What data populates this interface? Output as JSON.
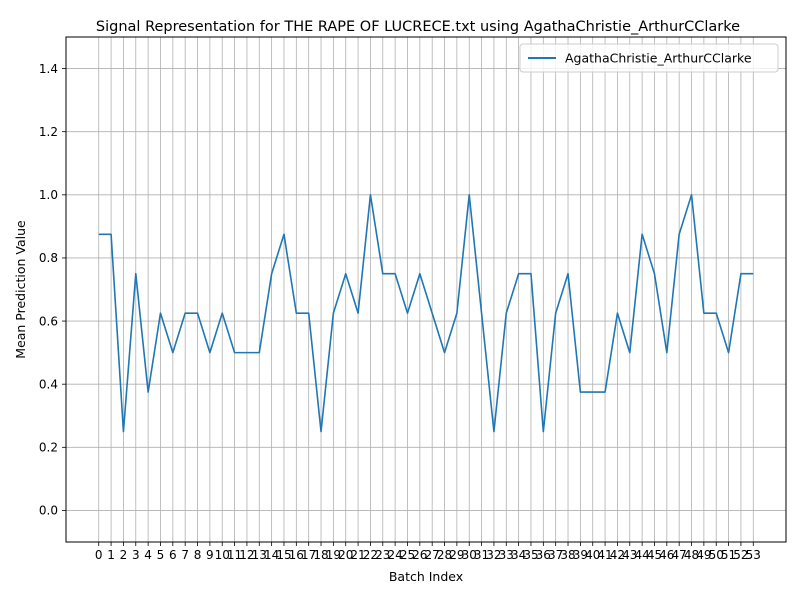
{
  "chart_data": {
    "type": "line",
    "title": "Signal Representation for THE RAPE OF LUCRECE.txt using AgathaChristie_ArthurCClarke",
    "xlabel": "Batch Index",
    "ylabel": "Mean Prediction Value",
    "xlim": [
      -2.65,
      55.65
    ],
    "ylim": [
      -0.1,
      1.5
    ],
    "yticks": [
      0.0,
      0.2,
      0.4,
      0.6,
      0.8,
      1.0,
      1.2,
      1.4
    ],
    "ytick_labels": [
      "0.0",
      "0.2",
      "0.4",
      "0.6",
      "0.8",
      "1.0",
      "1.2",
      "1.4"
    ],
    "xticks": [
      0,
      1,
      2,
      3,
      4,
      5,
      6,
      7,
      8,
      9,
      10,
      11,
      12,
      13,
      14,
      15,
      16,
      17,
      18,
      19,
      20,
      21,
      22,
      23,
      24,
      25,
      26,
      27,
      28,
      29,
      30,
      31,
      32,
      33,
      34,
      35,
      36,
      37,
      38,
      39,
      40,
      41,
      42,
      43,
      44,
      45,
      46,
      47,
      48,
      49,
      50,
      51,
      52,
      53
    ],
    "xtick_labels": [
      "0",
      "1",
      "2",
      "3",
      "4",
      "5",
      "6",
      "7",
      "8",
      "9",
      "10",
      "11",
      "12",
      "13",
      "14",
      "15",
      "16",
      "17",
      "18",
      "19",
      "20",
      "21",
      "22",
      "23",
      "24",
      "25",
      "26",
      "27",
      "28",
      "29",
      "30",
      "31",
      "32",
      "33",
      "34",
      "35",
      "36",
      "37",
      "38",
      "39",
      "40",
      "41",
      "42",
      "43",
      "44",
      "45",
      "46",
      "47",
      "48",
      "49",
      "50",
      "51",
      "52",
      "53"
    ],
    "grid": true,
    "legend_position": "top-right",
    "series": [
      {
        "name": "AgathaChristie_ArthurCClarke",
        "color": "#1f77b4",
        "x": [
          0,
          1,
          2,
          3,
          4,
          5,
          6,
          7,
          8,
          9,
          10,
          11,
          12,
          13,
          14,
          15,
          16,
          17,
          18,
          19,
          20,
          21,
          22,
          23,
          24,
          25,
          26,
          27,
          28,
          29,
          30,
          31,
          32,
          33,
          34,
          35,
          36,
          37,
          38,
          39,
          40,
          41,
          42,
          43,
          44,
          45,
          46,
          47,
          48,
          49,
          50,
          51,
          52,
          53
        ],
        "values": [
          0.875,
          0.875,
          0.25,
          0.75,
          0.375,
          0.625,
          0.5,
          0.625,
          0.625,
          0.5,
          0.625,
          0.5,
          0.5,
          0.5,
          0.75,
          0.875,
          0.625,
          0.625,
          0.25,
          0.625,
          0.75,
          0.625,
          1.0,
          0.75,
          0.75,
          0.625,
          0.75,
          0.625,
          0.5,
          0.625,
          1.0,
          0.625,
          0.25,
          0.625,
          0.75,
          0.75,
          0.25,
          0.625,
          0.75,
          0.375,
          0.375,
          0.375,
          0.625,
          0.5,
          0.875,
          0.75,
          0.5,
          0.875,
          1.0,
          0.625,
          0.625,
          0.5,
          0.75,
          0.75
        ]
      }
    ]
  },
  "colors": {
    "grid": "#b0b0b0",
    "axes": "#000000",
    "legend_border": "#cccccc"
  }
}
